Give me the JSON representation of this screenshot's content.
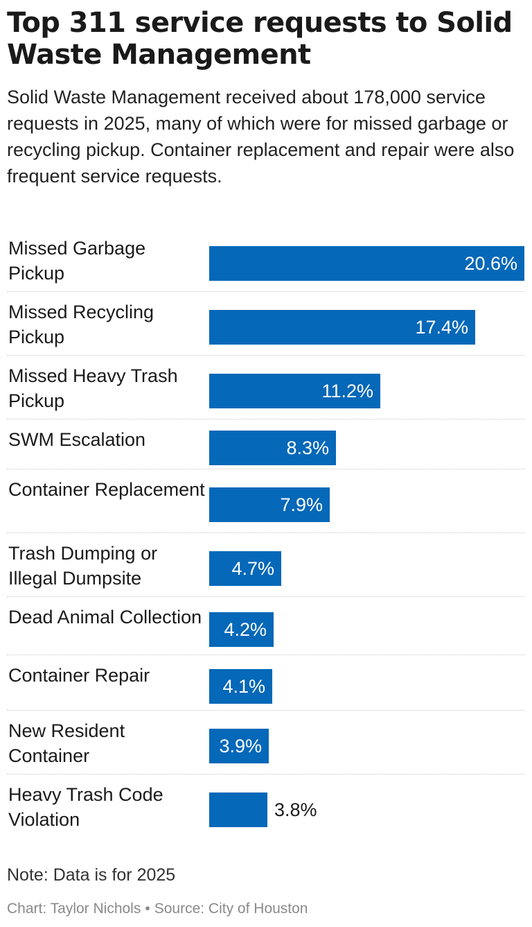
{
  "title": "Top 311 service requests to Solid Waste Management",
  "subtitle": "Solid Waste Management received about 178,000 service requests in 2025, many of which were for missed garbage or recycling pickup. Container replacement and repair were also frequent service requests.",
  "note": "Note: Data is for 2025",
  "credit": {
    "author": "Chart: Taylor Nichols",
    "separator": "•",
    "source": "Source: City of Houston"
  },
  "colors": {
    "bar": "#0568b8"
  },
  "chart_data": {
    "type": "bar",
    "orientation": "horizontal",
    "categories": [
      "Missed Garbage Pickup",
      "Missed Recycling Pickup",
      "Missed Heavy Trash Pickup",
      "SWM Escalation",
      "Container Replacement",
      "Trash Dumping or Illegal Dumpsite",
      "Dead Animal Collection",
      "Container Repair",
      "New Resident Container",
      "Heavy Trash Code Violation"
    ],
    "values": [
      20.6,
      17.4,
      11.2,
      8.3,
      7.9,
      4.7,
      4.2,
      4.1,
      3.9,
      3.8
    ],
    "labels": [
      "20.6%",
      "17.4%",
      "11.2%",
      "8.3%",
      "7.9%",
      "4.7%",
      "4.2%",
      "4.1%",
      "3.9%",
      "3.8%"
    ],
    "xlim": [
      0,
      20.6
    ]
  }
}
